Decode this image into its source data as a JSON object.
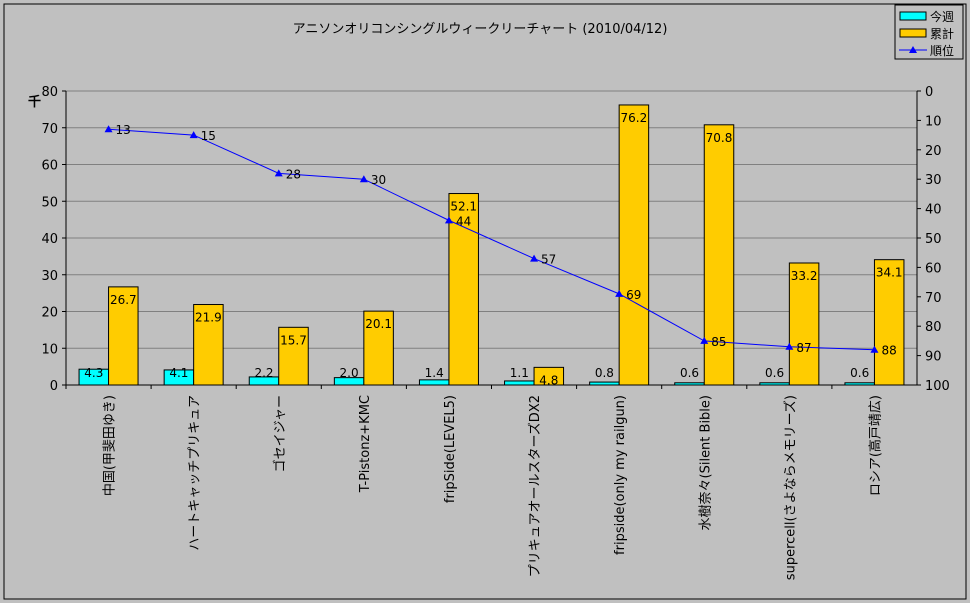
{
  "chart_data": {
    "type": "bar",
    "title": "アニソンオリコンシングルウィークリーチャート (2010/04/12)",
    "y_left_unit": "千",
    "ylim_left": [
      0,
      80
    ],
    "ylim_right": [
      0,
      100
    ],
    "right_axis_reversed": true,
    "yticks_left": [
      "0",
      "10",
      "20",
      "30",
      "40",
      "50",
      "60",
      "70",
      "80"
    ],
    "yticks_right": [
      "0",
      "10",
      "20",
      "30",
      "40",
      "50",
      "60",
      "70",
      "80",
      "90",
      "100"
    ],
    "grid": true,
    "legend_position": "top-right",
    "categories": [
      "中国(甲斐田ゆき)",
      "ハートキャッチプリキュア",
      "ゴセイジャー",
      "T-Pistonz+KMC",
      "fripSide(LEVEL5)",
      "プリキュアオールスターズDX2",
      "fripside(only my railgun)",
      "水樹奈々(Silent Bible)",
      "supercell(さよならメモリーズ)",
      "ロシア(高戸靖広)"
    ],
    "series": [
      {
        "name": "今週",
        "type": "bar",
        "axis": "left",
        "color": "#00ffff",
        "values": [
          4.3,
          4.1,
          2.2,
          2.0,
          1.4,
          1.1,
          0.8,
          0.6,
          0.6,
          0.6
        ],
        "labels": [
          "4.3",
          "4.1",
          "2.2",
          "2.0",
          "1.4",
          "1.1",
          "0.8",
          "0.6",
          "0.6",
          "0.6"
        ]
      },
      {
        "name": "累計",
        "type": "bar",
        "axis": "left",
        "color": "#ffcc00",
        "values": [
          26.7,
          21.9,
          15.7,
          20.1,
          52.1,
          4.8,
          76.2,
          70.8,
          33.2,
          34.1
        ],
        "labels": [
          "26.7",
          "21.9",
          "15.7",
          "20.1",
          "52.1",
          "4.8",
          "76.2",
          "70.8",
          "33.2",
          "34.1"
        ]
      },
      {
        "name": "順位",
        "type": "line",
        "axis": "right",
        "color": "#0000ff",
        "marker": "triangle",
        "values": [
          13,
          15,
          28,
          30,
          44,
          57,
          69,
          85,
          87,
          88
        ],
        "labels": [
          "13",
          "15",
          "28",
          "30",
          "44",
          "57",
          "69",
          "85",
          "87",
          "88"
        ]
      }
    ]
  }
}
